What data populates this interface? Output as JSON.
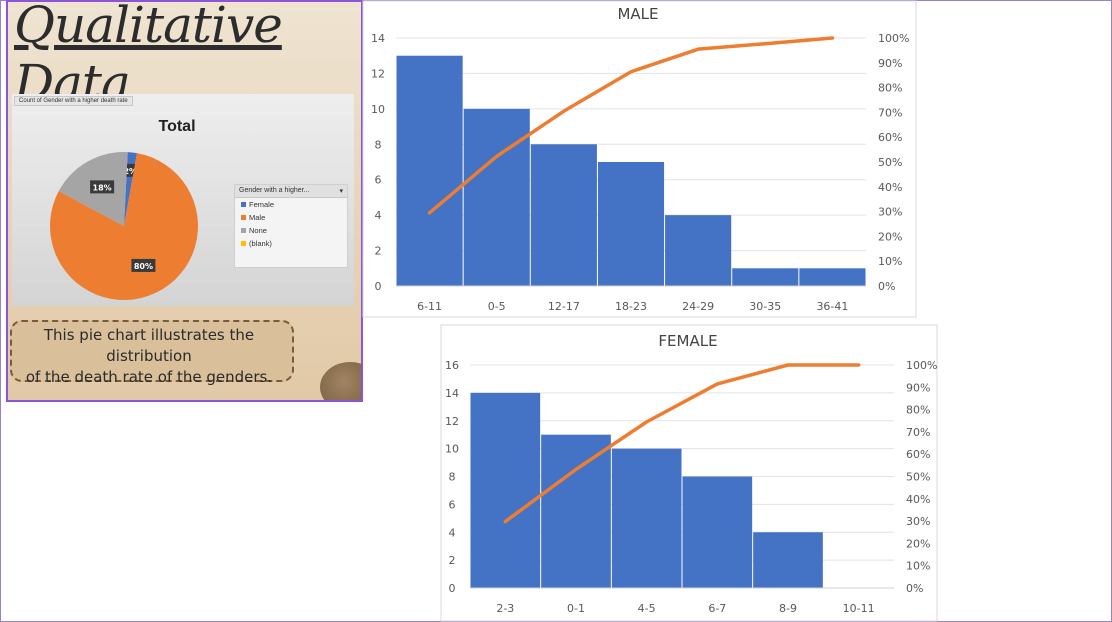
{
  "slide": {
    "title": "Qualitative Data",
    "field_label": "Count of Gender with a higher death rate",
    "pie_title": "Total",
    "legend_title": "Gender with a higher...",
    "caption_line1": "This pie chart illustrates the",
    "caption_line2": "distribution",
    "caption_line3": "of the death rate of the genders."
  },
  "colors": {
    "bar": "#4472c4",
    "line": "#ed7d31",
    "female": "#4472c4",
    "male": "#ed7d31",
    "none": "#a5a5a5",
    "blank": "#ffc000"
  },
  "chart_data": [
    {
      "type": "pie",
      "title": "Total",
      "legend_title": "Gender with a higher...",
      "slices": [
        {
          "label": "Female",
          "value": 2,
          "display": "2%"
        },
        {
          "label": "Male",
          "value": 80,
          "display": "80%"
        },
        {
          "label": "None",
          "value": 18,
          "display": "18%"
        },
        {
          "label": "(blank)",
          "value": 0,
          "display": ""
        }
      ],
      "legend": "right"
    },
    {
      "type": "bar",
      "title": "MALE",
      "categories": [
        "6-11",
        "0-5",
        "12-17",
        "18-23",
        "24-29",
        "30-35",
        "36-41"
      ],
      "values": [
        13,
        10,
        8,
        7,
        4,
        1,
        1
      ],
      "cumulative_percent": [
        29.5,
        52.3,
        70.5,
        86.4,
        95.5,
        97.7,
        100
      ],
      "ylim": [
        0,
        14
      ],
      "yticks": [
        0,
        2,
        4,
        6,
        8,
        10,
        12,
        14
      ],
      "y2lim": [
        0,
        100
      ],
      "y2ticks": [
        "0%",
        "10%",
        "20%",
        "30%",
        "40%",
        "50%",
        "60%",
        "70%",
        "80%",
        "90%",
        "100%"
      ],
      "grid": true
    },
    {
      "type": "bar",
      "title": "FEMALE",
      "categories": [
        "2-3",
        "0-1",
        "4-5",
        "6-7",
        "8-9",
        "10-11"
      ],
      "values": [
        14,
        11,
        10,
        8,
        4,
        0
      ],
      "cumulative_percent": [
        29.8,
        53.2,
        74.5,
        91.5,
        100,
        100
      ],
      "ylim": [
        0,
        16
      ],
      "yticks": [
        0,
        2,
        4,
        6,
        8,
        10,
        12,
        14,
        16
      ],
      "y2lim": [
        0,
        100
      ],
      "y2ticks": [
        "0%",
        "10%",
        "20%",
        "30%",
        "40%",
        "50%",
        "60%",
        "70%",
        "80%",
        "90%",
        "100%"
      ],
      "grid": true
    }
  ]
}
